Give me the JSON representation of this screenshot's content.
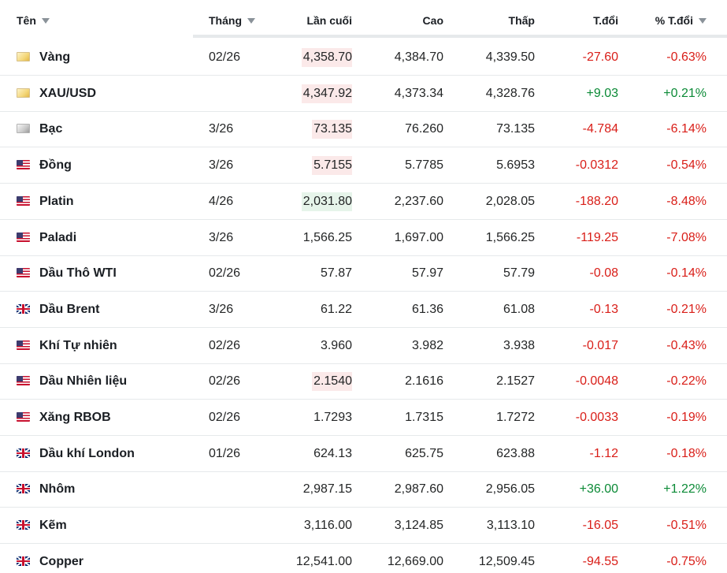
{
  "headers": {
    "name": "Tên",
    "month": "Tháng",
    "last": "Lần cuối",
    "high": "Cao",
    "low": "Thấp",
    "change": "T.đổi",
    "change_pct": "% T.đổi"
  },
  "colors": {
    "negative": "#d91e18",
    "positive": "#0b8a36"
  },
  "rows": [
    {
      "name": "Vàng",
      "flag": "gold-icon",
      "month": "02/26",
      "last": "4,358.70",
      "high": "4,384.70",
      "low": "4,339.50",
      "change": "-27.60",
      "change_pct": "-0.63%",
      "dir": "neg",
      "hl": "red"
    },
    {
      "name": "XAU/USD",
      "flag": "gold-icon",
      "month": "",
      "last": "4,347.92",
      "high": "4,373.34",
      "low": "4,328.76",
      "change": "+9.03",
      "change_pct": "+0.21%",
      "dir": "pos",
      "hl": "red"
    },
    {
      "name": "Bạc",
      "flag": "silver-icon",
      "month": "3/26",
      "last": "73.135",
      "high": "76.260",
      "low": "73.135",
      "change": "-4.784",
      "change_pct": "-6.14%",
      "dir": "neg",
      "hl": "red"
    },
    {
      "name": "Đồng",
      "flag": "us-flag-icon",
      "month": "3/26",
      "last": "5.7155",
      "high": "5.7785",
      "low": "5.6953",
      "change": "-0.0312",
      "change_pct": "-0.54%",
      "dir": "neg",
      "hl": "red"
    },
    {
      "name": "Platin",
      "flag": "us-flag-icon",
      "month": "4/26",
      "last": "2,031.80",
      "high": "2,237.60",
      "low": "2,028.05",
      "change": "-188.20",
      "change_pct": "-8.48%",
      "dir": "neg",
      "hl": "green"
    },
    {
      "name": "Paladi",
      "flag": "us-flag-icon",
      "month": "3/26",
      "last": "1,566.25",
      "high": "1,697.00",
      "low": "1,566.25",
      "change": "-119.25",
      "change_pct": "-7.08%",
      "dir": "neg",
      "hl": ""
    },
    {
      "name": "Dầu Thô WTI",
      "flag": "us-flag-icon",
      "month": "02/26",
      "last": "57.87",
      "high": "57.97",
      "low": "57.79",
      "change": "-0.08",
      "change_pct": "-0.14%",
      "dir": "neg",
      "hl": ""
    },
    {
      "name": "Dầu Brent",
      "flag": "uk-flag-icon",
      "month": "3/26",
      "last": "61.22",
      "high": "61.36",
      "low": "61.08",
      "change": "-0.13",
      "change_pct": "-0.21%",
      "dir": "neg",
      "hl": ""
    },
    {
      "name": "Khí Tự nhiên",
      "flag": "us-flag-icon",
      "month": "02/26",
      "last": "3.960",
      "high": "3.982",
      "low": "3.938",
      "change": "-0.017",
      "change_pct": "-0.43%",
      "dir": "neg",
      "hl": ""
    },
    {
      "name": "Dầu Nhiên liệu",
      "flag": "us-flag-icon",
      "month": "02/26",
      "last": "2.1540",
      "high": "2.1616",
      "low": "2.1527",
      "change": "-0.0048",
      "change_pct": "-0.22%",
      "dir": "neg",
      "hl": "red"
    },
    {
      "name": "Xăng RBOB",
      "flag": "us-flag-icon",
      "month": "02/26",
      "last": "1.7293",
      "high": "1.7315",
      "low": "1.7272",
      "change": "-0.0033",
      "change_pct": "-0.19%",
      "dir": "neg",
      "hl": ""
    },
    {
      "name": "Dầu khí London",
      "flag": "uk-flag-icon",
      "month": "01/26",
      "last": "624.13",
      "high": "625.75",
      "low": "623.88",
      "change": "-1.12",
      "change_pct": "-0.18%",
      "dir": "neg",
      "hl": ""
    },
    {
      "name": "Nhôm",
      "flag": "uk-flag-icon",
      "month": "",
      "last": "2,987.15",
      "high": "2,987.60",
      "low": "2,956.05",
      "change": "+36.00",
      "change_pct": "+1.22%",
      "dir": "pos",
      "hl": ""
    },
    {
      "name": "Kẽm",
      "flag": "uk-flag-icon",
      "month": "",
      "last": "3,116.00",
      "high": "3,124.85",
      "low": "3,113.10",
      "change": "-16.05",
      "change_pct": "-0.51%",
      "dir": "neg",
      "hl": ""
    },
    {
      "name": "Copper",
      "flag": "uk-flag-icon",
      "month": "",
      "last": "12,541.00",
      "high": "12,669.00",
      "low": "12,509.45",
      "change": "-94.55",
      "change_pct": "-0.75%",
      "dir": "neg",
      "hl": ""
    }
  ]
}
